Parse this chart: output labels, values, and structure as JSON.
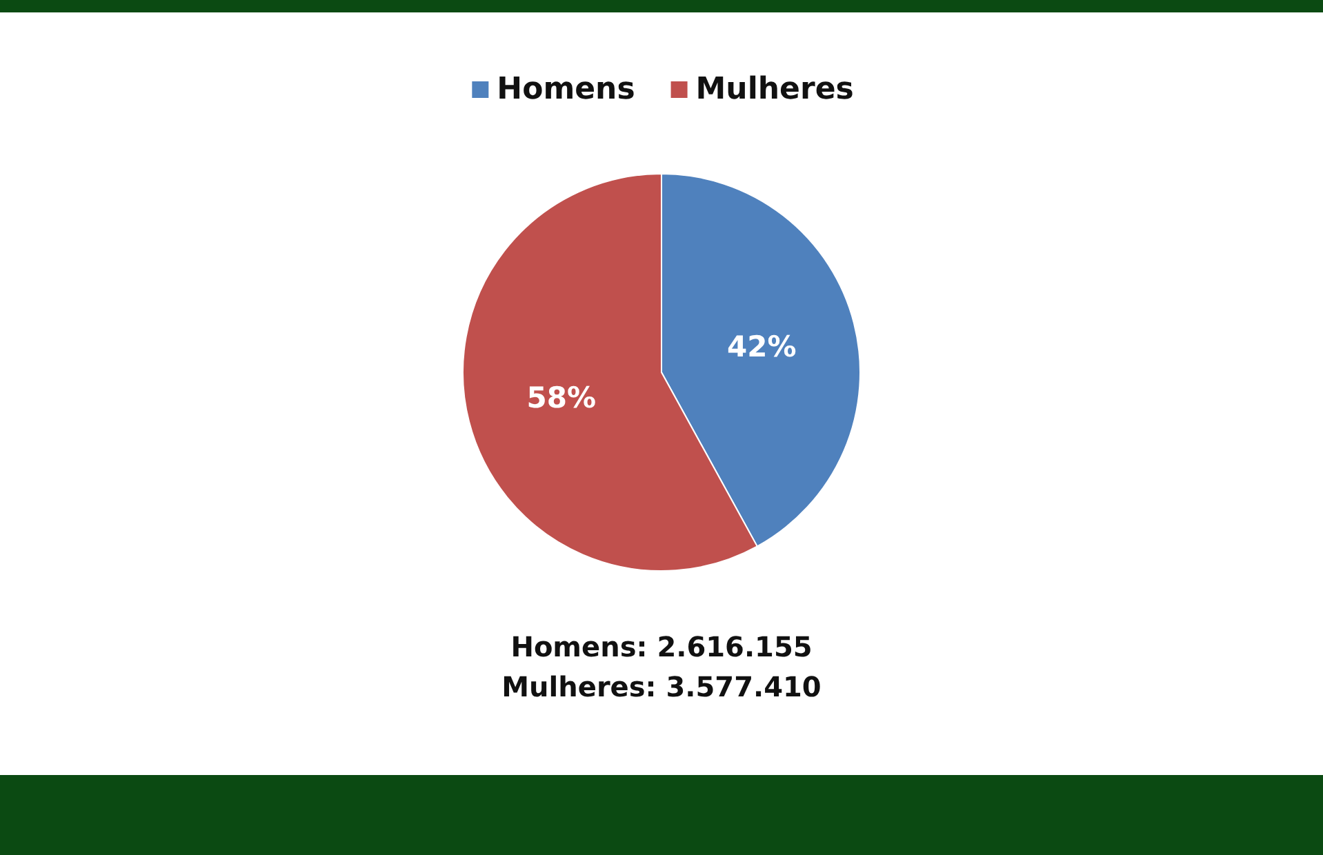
{
  "chart_data": {
    "type": "pie",
    "categories": [
      "Homens",
      "Mulheres"
    ],
    "values": [
      42,
      58
    ],
    "colors": [
      "#4f81bd",
      "#c0504d"
    ],
    "legend": "top",
    "value_labels": [
      "42%",
      "58%"
    ],
    "annotations": [
      "Homens: 2.616.155",
      "Mulheres: 3.577.410"
    ]
  }
}
